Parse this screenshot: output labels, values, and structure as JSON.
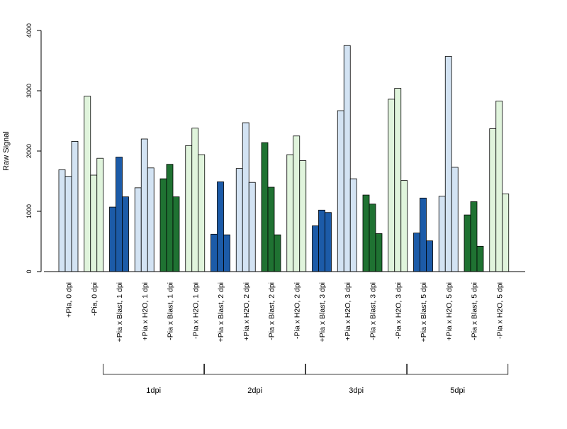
{
  "chart_data": {
    "type": "bar",
    "title": "",
    "ylabel": "Raw Signal",
    "xlabel": "",
    "ylim": [
      0,
      4000
    ],
    "yticks": [
      0,
      1000,
      2000,
      3000,
      4000
    ],
    "replicates_per_category": 3,
    "categories": [
      {
        "label": "+Pia, 0 dpi",
        "color": "#d3e3f3",
        "values": [
          1690,
          1580,
          2160
        ]
      },
      {
        "label": "-Pia, 0 dpi",
        "color": "#e0f4dc",
        "values": [
          2910,
          1600,
          1880
        ]
      },
      {
        "label": "+Pia x Blast, 1 dpi",
        "color": "#1c5ba8",
        "values": [
          1070,
          1900,
          1240
        ]
      },
      {
        "label": "+Pia x H2O, 1 dpi",
        "color": "#d3e3f3",
        "values": [
          1390,
          2200,
          1720
        ]
      },
      {
        "label": "-Pia x Blast, 1 dpi",
        "color": "#1f7232",
        "values": [
          1540,
          1780,
          1240
        ]
      },
      {
        "label": "-Pia x H2O, 1 dpi",
        "color": "#e0f4dc",
        "values": [
          2090,
          2380,
          1940
        ]
      },
      {
        "label": "+Pia x Blast, 2 dpi",
        "color": "#1c5ba8",
        "values": [
          620,
          1490,
          610
        ]
      },
      {
        "label": "+Pia x H2O, 2 dpi",
        "color": "#d3e3f3",
        "values": [
          1710,
          2470,
          1480
        ]
      },
      {
        "label": "-Pia x Blast, 2 dpi",
        "color": "#1f7232",
        "values": [
          2140,
          1400,
          610
        ]
      },
      {
        "label": "-Pia x H2O, 2 dpi",
        "color": "#e0f4dc",
        "values": [
          1940,
          2250,
          1840
        ]
      },
      {
        "label": "+Pia x Blast, 3 dpi",
        "color": "#1c5ba8",
        "values": [
          760,
          1020,
          980
        ]
      },
      {
        "label": "+Pia x H2O, 3 dpi",
        "color": "#d3e3f3",
        "values": [
          2670,
          3750,
          1540
        ]
      },
      {
        "label": "-Pia x Blast, 3 dpi",
        "color": "#1f7232",
        "values": [
          1270,
          1120,
          630
        ]
      },
      {
        "label": "-Pia x H2O, 3 dpi",
        "color": "#e0f4dc",
        "values": [
          2860,
          3040,
          1510
        ]
      },
      {
        "label": "+Pia x Blast, 5 dpi",
        "color": "#1c5ba8",
        "values": [
          640,
          1220,
          510
        ]
      },
      {
        "label": "+Pia x H2O, 5 dpi",
        "color": "#d3e3f3",
        "values": [
          1250,
          3570,
          1730
        ]
      },
      {
        "label": "-Pia x Blast, 5 dpi",
        "color": "#1f7232",
        "values": [
          940,
          1160,
          420
        ]
      },
      {
        "label": "-Pia x H2O, 5 dpi",
        "color": "#e0f4dc",
        "values": [
          2370,
          2830,
          1290
        ]
      }
    ],
    "groups": [
      {
        "label": "1dpi",
        "first_category": 2,
        "last_category": 5
      },
      {
        "label": "2dpi",
        "first_category": 6,
        "last_category": 9
      },
      {
        "label": "3dpi",
        "first_category": 10,
        "last_category": 13
      },
      {
        "label": "5dpi",
        "first_category": 14,
        "last_category": 17
      }
    ],
    "grid": false,
    "legend": "none"
  }
}
